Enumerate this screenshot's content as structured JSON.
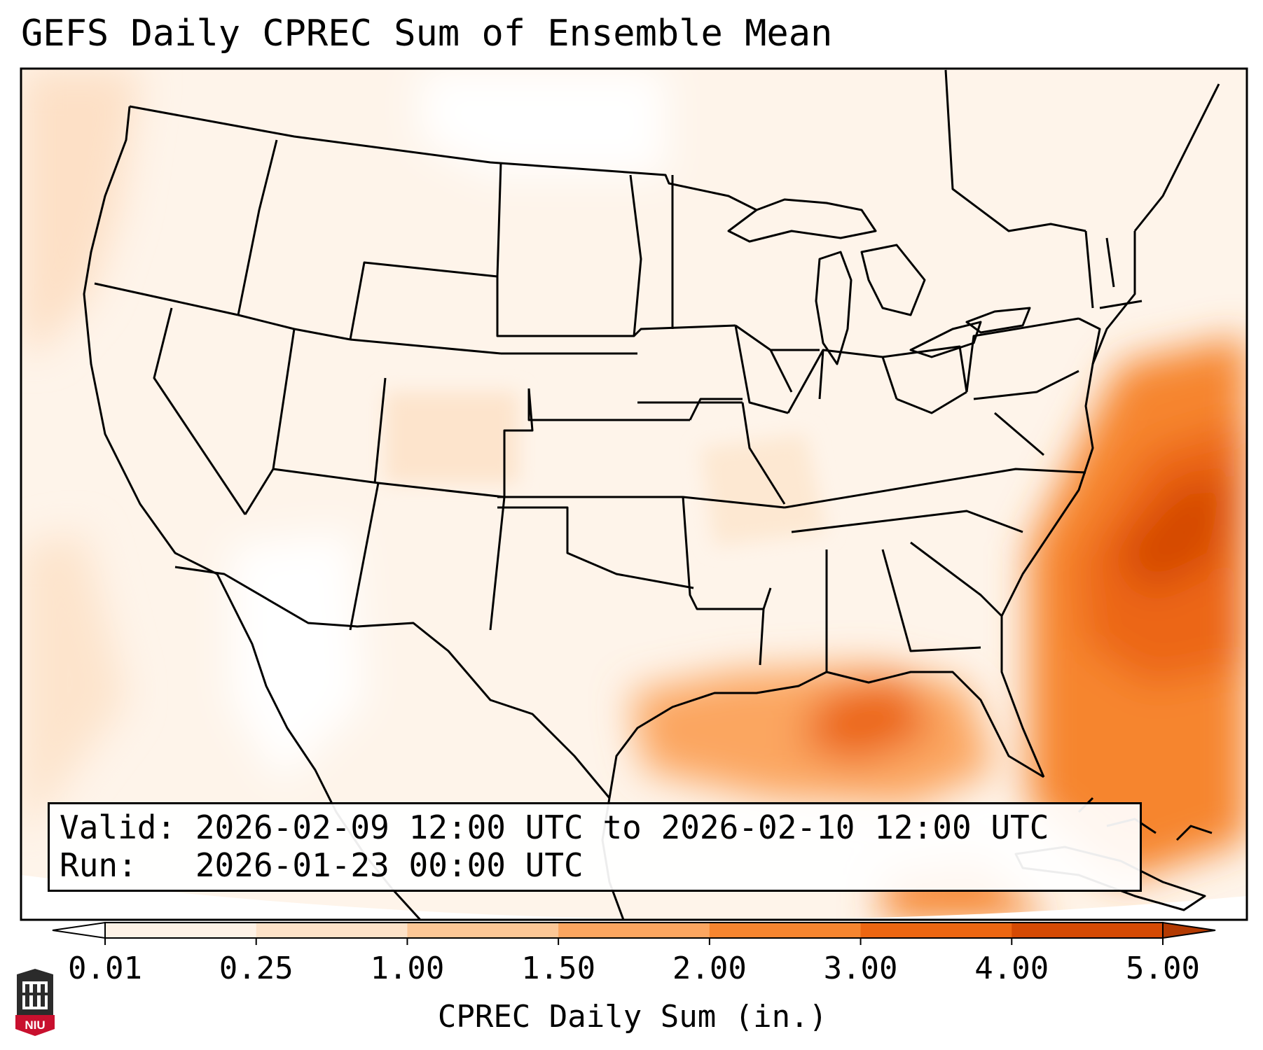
{
  "title": "GEFS Daily CPREC Sum of Ensemble Mean",
  "info": {
    "valid_line": "Valid: 2026-02-09 12:00 UTC to 2026-02-10 12:00 UTC",
    "run_line": "Run:   2026-01-23 00:00 UTC"
  },
  "colorbar": {
    "label": "CPREC Daily Sum (in.)",
    "ticks": [
      "0.01",
      "0.25",
      "1.00",
      "1.50",
      "2.00",
      "3.00",
      "4.00",
      "5.00"
    ],
    "colors": [
      "#fef2e6",
      "#fde2c8",
      "#fcc796",
      "#fba660",
      "#f6852f",
      "#ec6612",
      "#d54a04"
    ],
    "under_color": "#ffffff",
    "over_color": "#b33a02"
  },
  "logo": {
    "text": "NIU"
  }
}
